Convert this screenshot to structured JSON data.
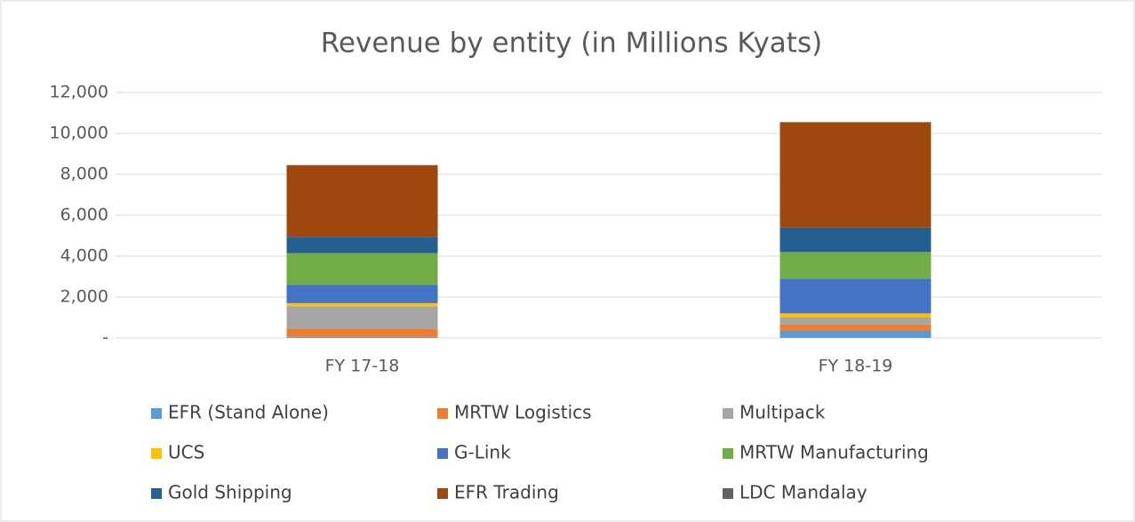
{
  "chart_data": {
    "type": "stacked_bar",
    "title": "Revenue by entity (in Millions Kyats)",
    "categories": [
      "FY 17-18",
      "FY 18-19"
    ],
    "series": [
      {
        "name": "EFR (Stand Alone)",
        "color": "#5b9bd5",
        "values": [
          50,
          350
        ]
      },
      {
        "name": "MRTW Logistics",
        "color": "#ed7d31",
        "values": [
          400,
          300
        ]
      },
      {
        "name": "Multipack",
        "color": "#a5a5a5",
        "values": [
          1100,
          350
        ]
      },
      {
        "name": "UCS",
        "color": "#ffc000",
        "values": [
          150,
          200
        ]
      },
      {
        "name": "G-Link",
        "color": "#4472c4",
        "values": [
          900,
          1700
        ]
      },
      {
        "name": "MRTW Manufacturing",
        "color": "#70ad47",
        "values": [
          1550,
          1300
        ]
      },
      {
        "name": "Gold Shipping",
        "color": "#255e91",
        "values": [
          800,
          1200
        ]
      },
      {
        "name": "EFR Trading",
        "color": "#9e480e",
        "values": [
          3500,
          5150
        ]
      },
      {
        "name": "LDC Mandalay",
        "color": "#636363",
        "values": [
          0,
          0
        ]
      }
    ],
    "ylim": [
      0,
      12000
    ],
    "yticks": [
      {
        "value": 0,
        "label": "-"
      },
      {
        "value": 2000,
        "label": "2,000"
      },
      {
        "value": 4000,
        "label": "4,000"
      },
      {
        "value": 6000,
        "label": "6,000"
      },
      {
        "value": 8000,
        "label": "8,000"
      },
      {
        "value": 10000,
        "label": "10,000"
      },
      {
        "value": 12000,
        "label": "12,000"
      }
    ],
    "grid": true,
    "legend": "bottom"
  }
}
